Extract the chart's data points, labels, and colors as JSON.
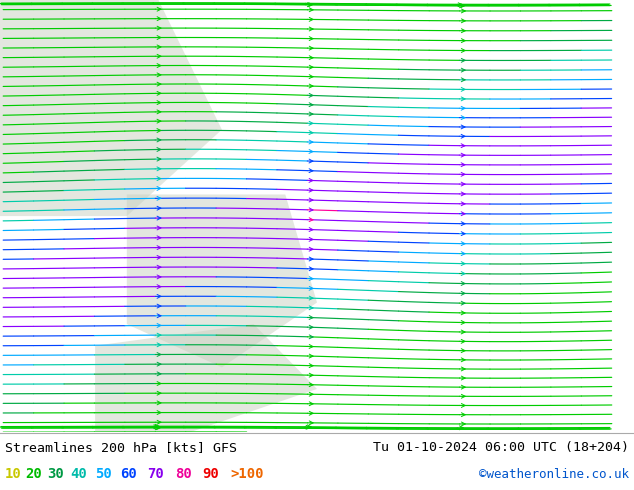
{
  "title_left": "Streamlines 200 hPa [kts] GFS",
  "title_right": "Tu 01-10-2024 06:00 UTC (18+204)",
  "credit": "©weatheronline.co.uk",
  "legend_values": [
    "10",
    "20",
    "30",
    "40",
    "50",
    "60",
    "70",
    "80",
    "90",
    ">100"
  ],
  "legend_colors": [
    "#c8c800",
    "#00bb00",
    "#009944",
    "#00bbaa",
    "#00aaff",
    "#0044ff",
    "#8800ee",
    "#ee0099",
    "#ee0000",
    "#ee6600"
  ],
  "bottom_bar_color": "#ffffff",
  "credit_color": "#0055cc",
  "map_bg_color": "#c8dda0",
  "ocean_color": "#e0e8e0",
  "colors_by_speed": [
    "#c8c800",
    "#00cc00",
    "#00aa44",
    "#00ccaa",
    "#00aaff",
    "#0044ff",
    "#8800ff",
    "#ff0099",
    "#ff0000",
    "#ff6600"
  ]
}
